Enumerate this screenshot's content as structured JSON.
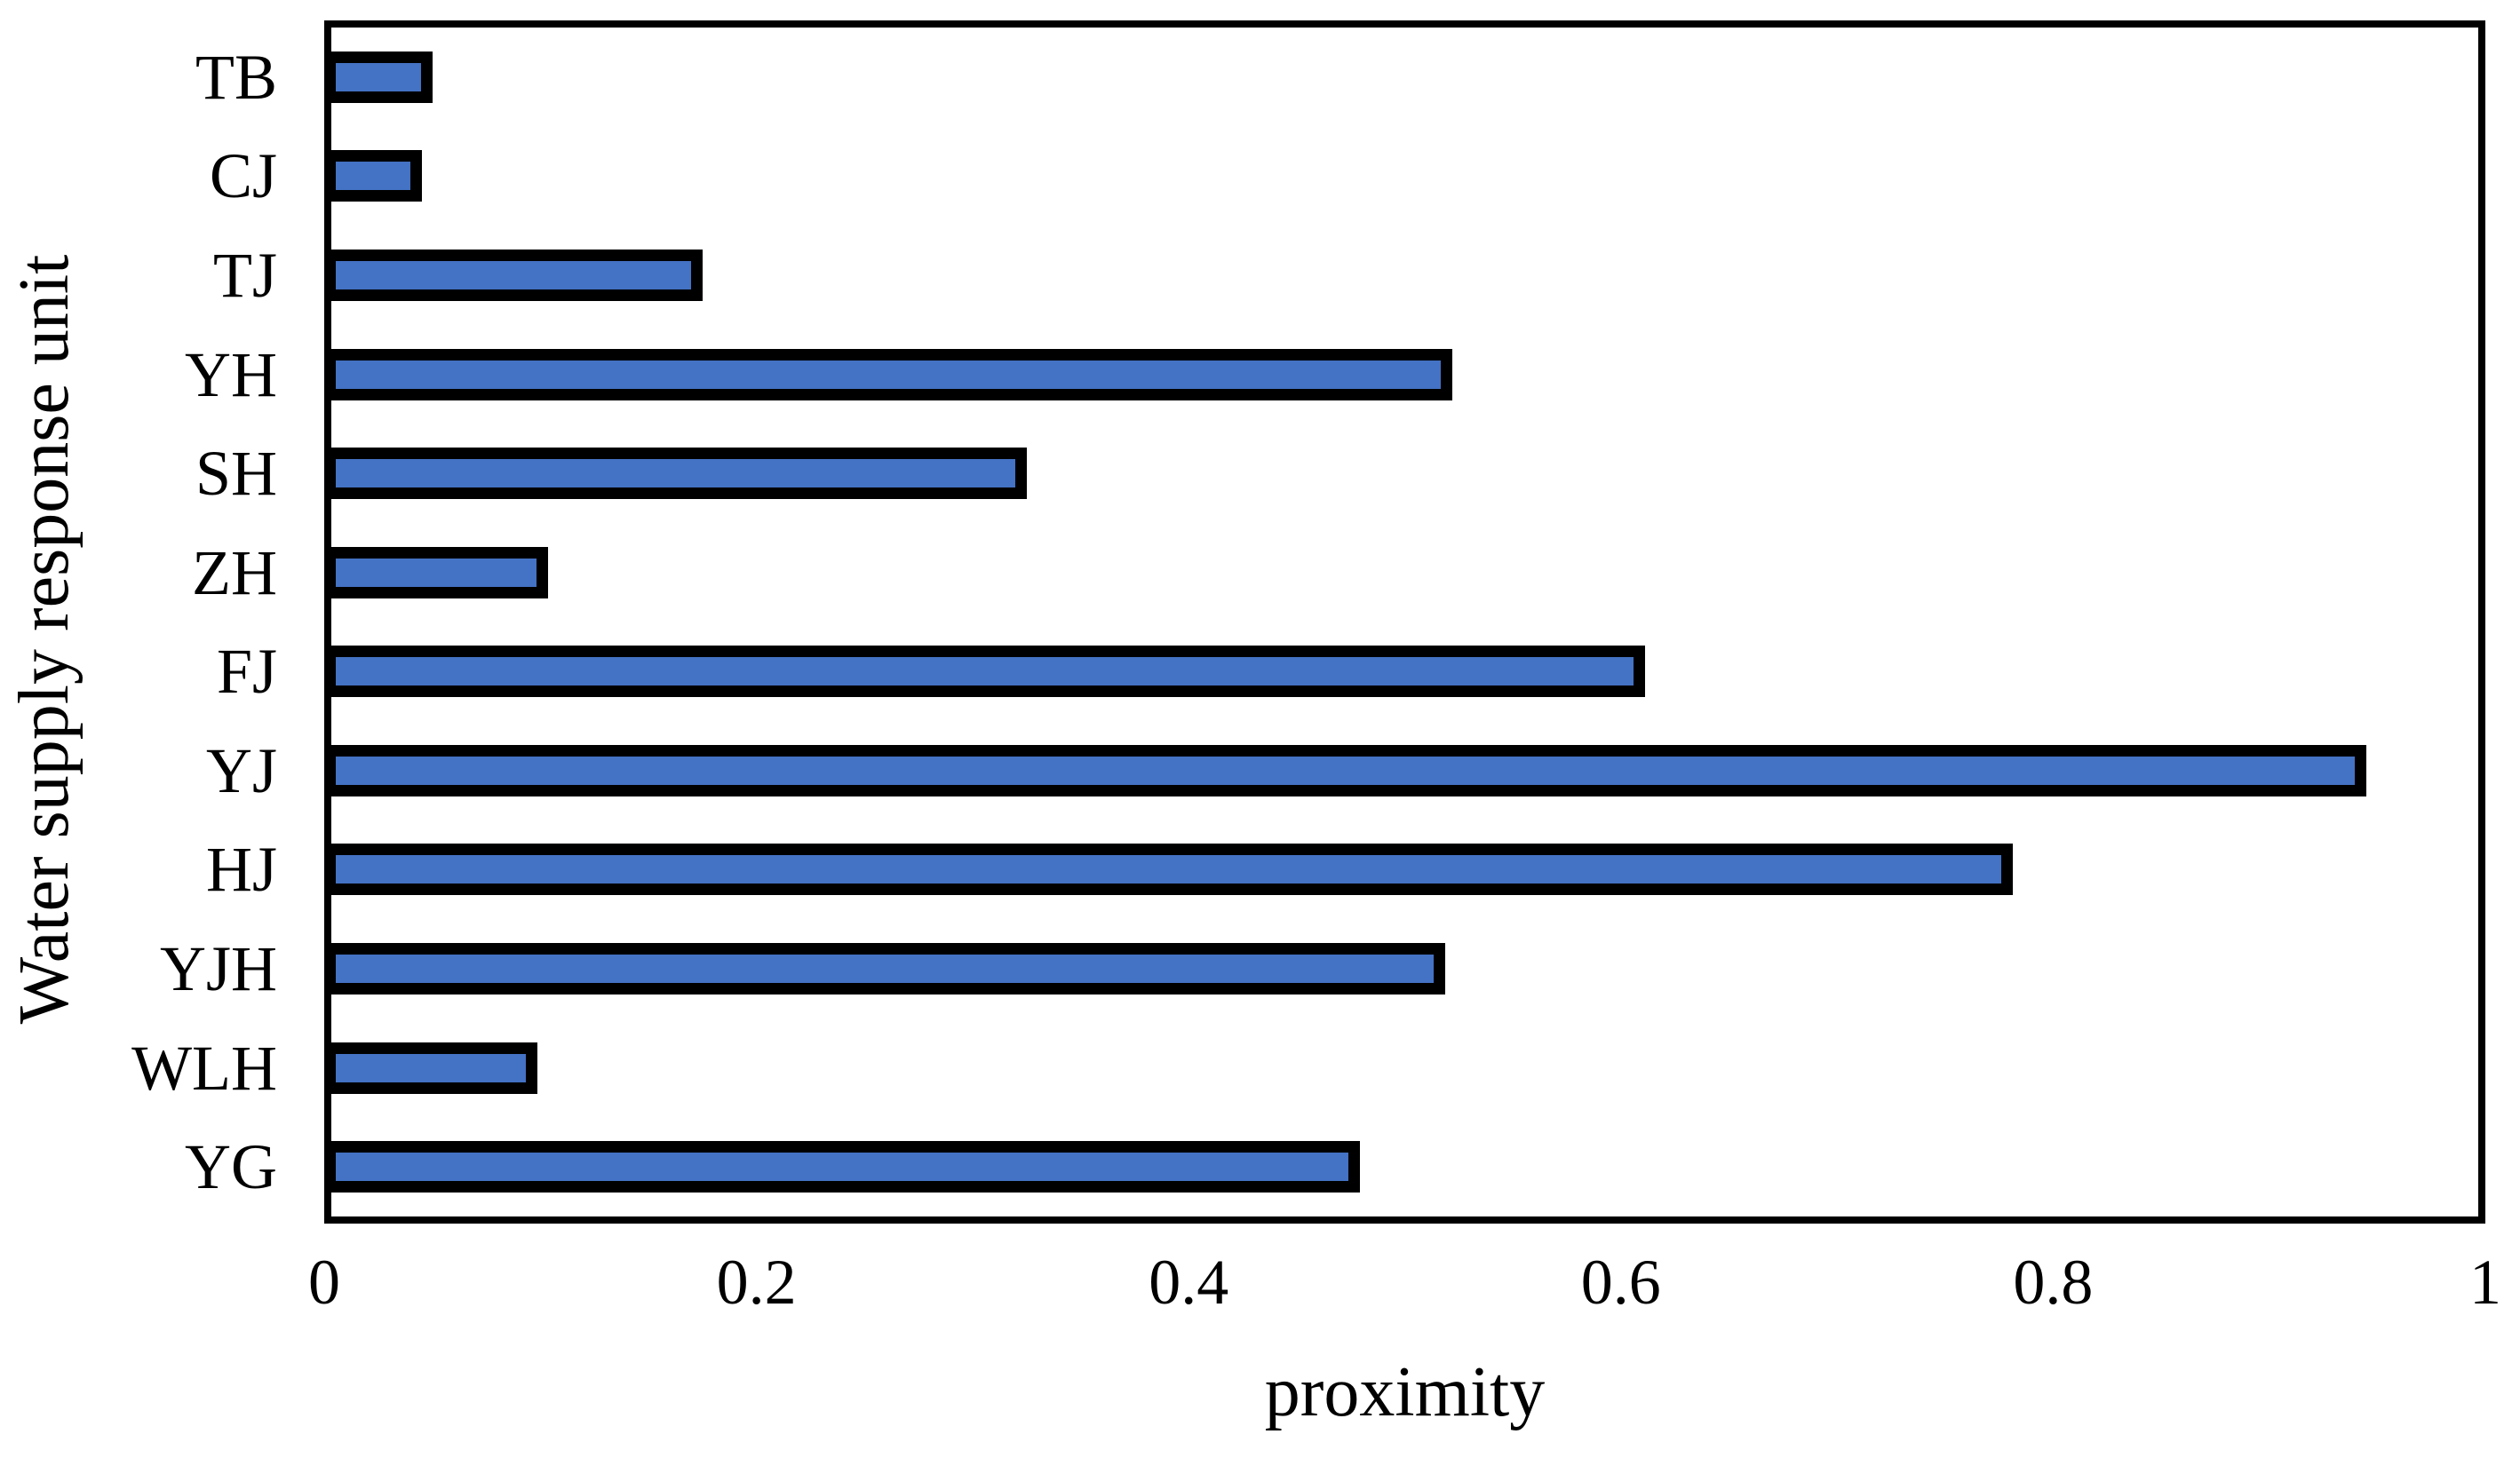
{
  "figure": {
    "background": "#ffffff",
    "bar_fill": "#4472C4",
    "bar_border": "#000000",
    "axis_color": "#000000"
  },
  "chart_data": {
    "type": "bar",
    "orientation": "horizontal",
    "title": "",
    "xlabel": "proximity",
    "ylabel": "Water supply response unit",
    "categories": [
      "TB",
      "CJ",
      "TJ",
      "YH",
      "SH",
      "ZH",
      "FJ",
      "YJ",
      "HJ",
      "YJH",
      "WLH",
      "YG"
    ],
    "values": [
      0.047,
      0.042,
      0.173,
      0.522,
      0.324,
      0.101,
      0.612,
      0.948,
      0.783,
      0.519,
      0.096,
      0.479
    ],
    "xlim": [
      0,
      1
    ],
    "xticks": [
      0,
      0.2,
      0.4,
      0.6,
      0.8,
      1
    ],
    "xtick_labels": [
      "0",
      "0.2",
      "0.4",
      "0.6",
      "0.8",
      "1"
    ],
    "grid": false,
    "legend": null,
    "bar_height_fraction": 0.5
  }
}
